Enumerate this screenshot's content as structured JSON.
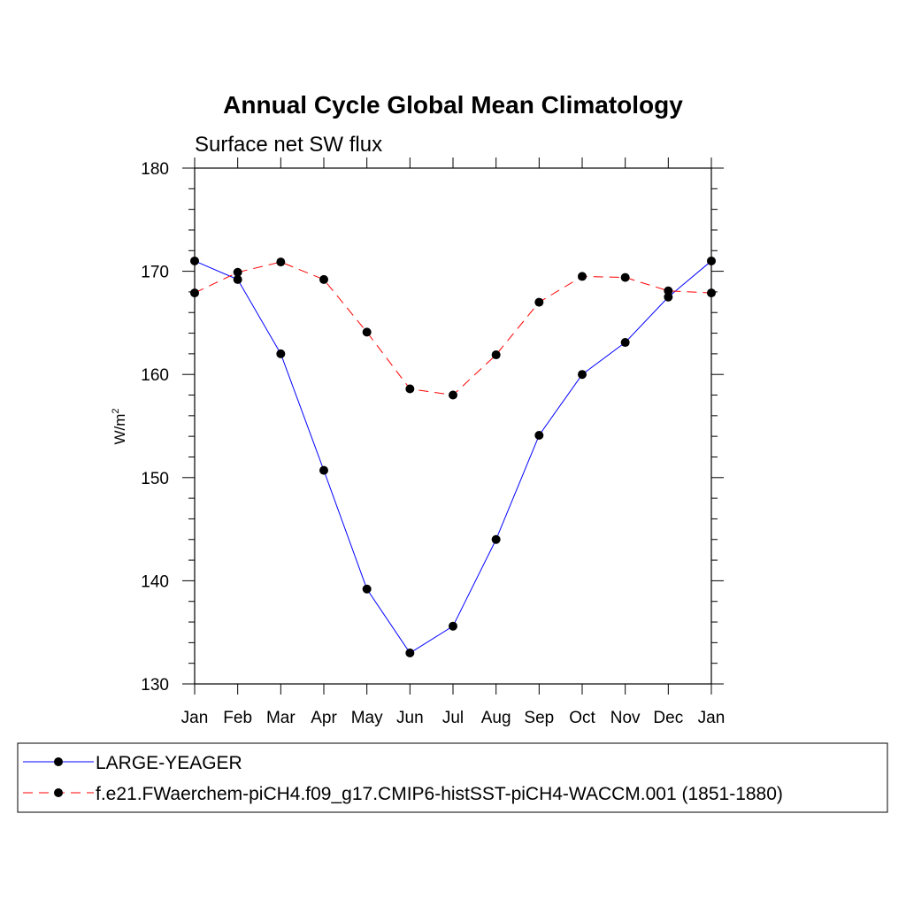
{
  "chart_data": {
    "type": "line",
    "title": "Annual Cycle Global Mean Climatology",
    "subtitle": "Surface net SW flux",
    "ylabel": "W/m",
    "ylabel_sup": "2",
    "xlabel": "",
    "categories": [
      "Jan",
      "Feb",
      "Mar",
      "Apr",
      "May",
      "Jun",
      "Jul",
      "Aug",
      "Sep",
      "Oct",
      "Nov",
      "Dec",
      "Jan"
    ],
    "ylim": [
      130,
      180
    ],
    "yticks": [
      130,
      140,
      150,
      160,
      170,
      180
    ],
    "grid": false,
    "legend_position": "bottom",
    "series": [
      {
        "name": "LARGE-YEAGER",
        "color": "#0000ff",
        "dash": "solid",
        "values": [
          171.0,
          169.2,
          162.0,
          150.7,
          139.2,
          133.0,
          135.6,
          144.0,
          154.1,
          160.0,
          163.1,
          167.5,
          171.0
        ]
      },
      {
        "name": "f.e21.FWaerchem-piCH4.f09_g17.CMIP6-histSST-piCH4-WACCM.001 (1851-1880)",
        "color": "#ff0000",
        "dash": "dashed",
        "values": [
          167.9,
          169.9,
          170.9,
          169.2,
          164.1,
          158.6,
          158.0,
          161.9,
          167.0,
          169.5,
          169.4,
          168.1,
          167.9
        ]
      }
    ]
  }
}
